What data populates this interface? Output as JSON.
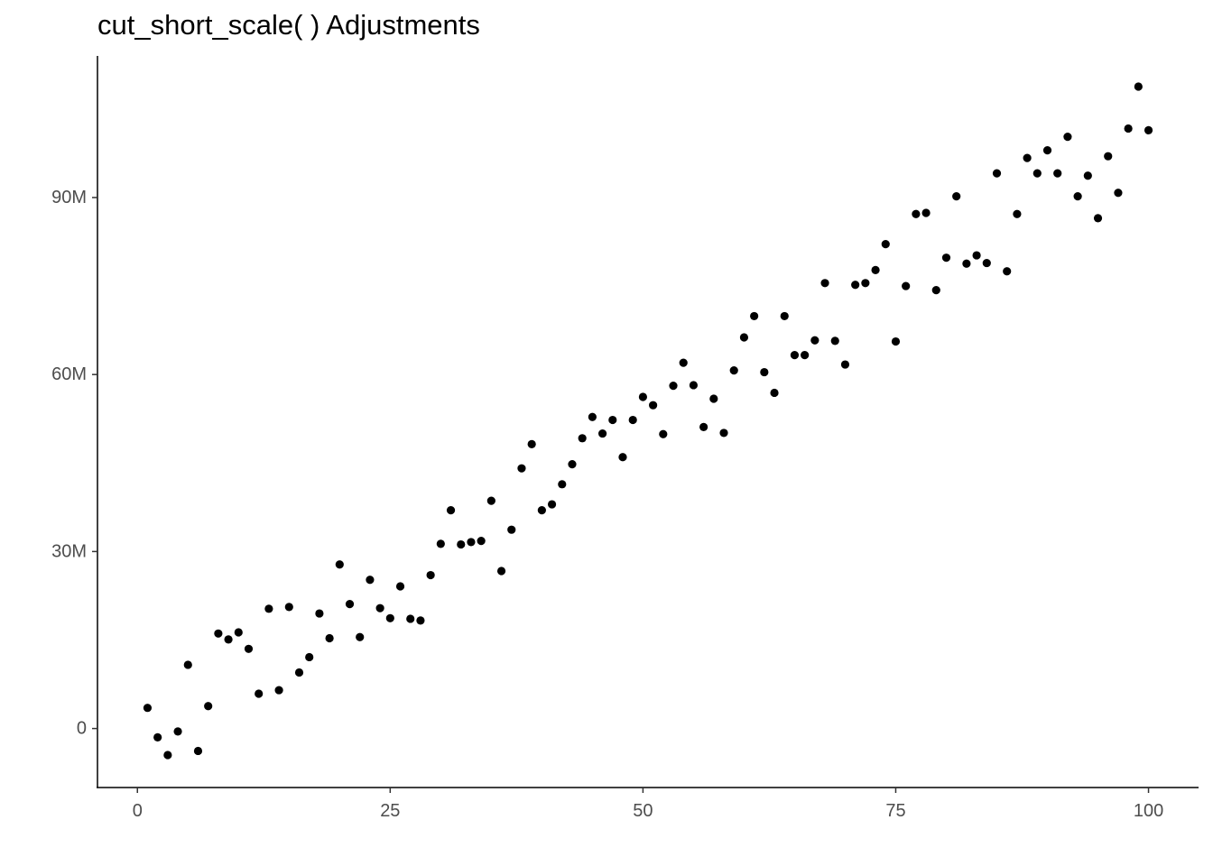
{
  "chart_data": {
    "type": "scatter",
    "title": "cut_short_scale( ) Adjustments",
    "xlabel": "",
    "ylabel": "",
    "xlim": [
      -3.95,
      104.95
    ],
    "ylim": [
      -10000000,
      114000000
    ],
    "grid": false,
    "legend": "none",
    "point_color": "#000000",
    "x_ticks": [
      {
        "value": 0,
        "label": "0"
      },
      {
        "value": 25,
        "label": "25"
      },
      {
        "value": 50,
        "label": "50"
      },
      {
        "value": 75,
        "label": "75"
      },
      {
        "value": 100,
        "label": "100"
      }
    ],
    "y_ticks": [
      {
        "value": 0,
        "label": "0"
      },
      {
        "value": 30000000,
        "label": "30M"
      },
      {
        "value": 60000000,
        "label": "60M"
      },
      {
        "value": 90000000,
        "label": "90M"
      }
    ],
    "x": [
      1,
      2,
      3,
      4,
      5,
      6,
      7,
      8,
      9,
      10,
      11,
      12,
      13,
      14,
      15,
      16,
      17,
      18,
      19,
      20,
      21,
      22,
      23,
      24,
      25,
      26,
      27,
      28,
      29,
      30,
      31,
      32,
      33,
      34,
      35,
      36,
      37,
      38,
      39,
      40,
      41,
      42,
      43,
      44,
      45,
      46,
      47,
      48,
      49,
      50,
      51,
      52,
      53,
      54,
      55,
      56,
      57,
      58,
      59,
      60,
      61,
      62,
      63,
      64,
      65,
      66,
      67,
      68,
      69,
      70,
      71,
      72,
      73,
      74,
      75,
      76,
      77,
      78,
      79,
      80,
      81,
      82,
      83,
      84,
      85,
      86,
      87,
      88,
      89,
      90,
      91,
      92,
      93,
      94,
      95,
      96,
      97,
      98,
      99,
      100
    ],
    "y": [
      3500000,
      -1500000,
      -4500000,
      -500000,
      10800000,
      -3800000,
      3800000,
      16100000,
      15100000,
      16300000,
      13500000,
      5900000,
      20300000,
      6500000,
      20600000,
      9500000,
      12100000,
      19500000,
      15300000,
      27800000,
      21100000,
      15500000,
      25200000,
      20400000,
      18700000,
      24100000,
      18600000,
      18300000,
      26000000,
      31300000,
      37000000,
      31200000,
      31600000,
      31800000,
      38600000,
      26700000,
      33700000,
      44100000,
      48200000,
      37000000,
      38000000,
      41400000,
      44800000,
      49200000,
      52800000,
      50000000,
      52300000,
      46000000,
      52300000,
      56200000,
      54800000,
      49900000,
      58100000,
      62000000,
      58200000,
      51100000,
      55900000,
      50100000,
      60700000,
      66300000,
      69900000,
      60400000,
      56900000,
      69900000,
      63300000,
      63300000,
      65800000,
      75500000,
      65700000,
      61700000,
      75200000,
      75500000,
      77700000,
      82100000,
      65600000,
      75000000,
      87200000,
      87400000,
      74300000,
      79800000,
      90200000,
      78800000,
      80200000,
      78900000,
      94100000,
      77500000,
      87200000,
      96700000,
      94100000,
      98000000,
      94100000,
      100300000,
      90200000,
      93700000,
      86500000,
      97000000,
      90800000,
      101700000,
      108800000,
      101400000
    ]
  }
}
